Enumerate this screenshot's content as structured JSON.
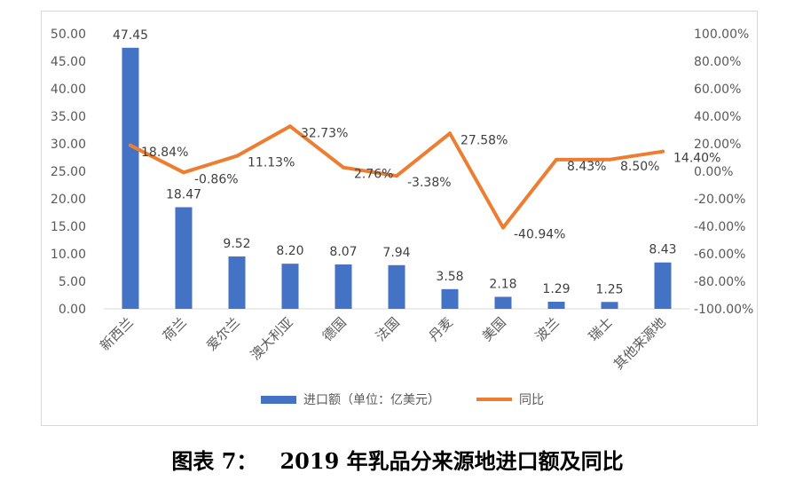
{
  "chart_data": {
    "type": "bar",
    "title": "",
    "categories": [
      "新西兰",
      "荷兰",
      "爱尔兰",
      "澳大利亚",
      "德国",
      "法国",
      "丹麦",
      "美国",
      "波兰",
      "瑞士",
      "其他来源地"
    ],
    "series": [
      {
        "name": "进口额（单位：亿美元）",
        "kind": "bar",
        "axis": "left",
        "values": [
          47.45,
          18.47,
          9.52,
          8.2,
          8.07,
          7.94,
          3.58,
          2.18,
          1.29,
          1.25,
          8.43
        ],
        "labels": [
          "47.45",
          "18.47",
          "9.52",
          "8.20",
          "8.07",
          "7.94",
          "3.58",
          "2.18",
          "1.29",
          "1.25",
          "8.43"
        ],
        "color": "#4472c4"
      },
      {
        "name": "同比",
        "kind": "line",
        "axis": "right",
        "values": [
          18.84,
          -0.86,
          11.13,
          32.73,
          2.76,
          -3.38,
          27.58,
          -40.94,
          8.43,
          8.5,
          14.4
        ],
        "labels": [
          "18.84%",
          "-0.86%",
          "11.13%",
          "32.73%",
          "2.76%",
          "-3.38%",
          "27.58%",
          "-40.94%",
          "8.43%",
          "8.50%",
          "14.40%"
        ],
        "color": "#ed7d31"
      }
    ],
    "y_left": {
      "ylim": [
        0,
        50
      ],
      "ticks": [
        "0.00",
        "5.00",
        "10.00",
        "15.00",
        "20.00",
        "25.00",
        "30.00",
        "35.00",
        "40.00",
        "45.00",
        "50.00"
      ]
    },
    "y_right": {
      "ylim": [
        -100,
        100
      ],
      "ticks": [
        "-100.00%",
        "-80.00%",
        "-60.00%",
        "-40.00%",
        "-20.00%",
        "0.00%",
        "20.00%",
        "40.00%",
        "60.00%",
        "80.00%",
        "100.00%"
      ]
    },
    "grid": false,
    "legend": "bottom"
  },
  "caption": {
    "prefix": "图表 7：",
    "text": "2019 年乳品分来源地进口额及同比"
  }
}
